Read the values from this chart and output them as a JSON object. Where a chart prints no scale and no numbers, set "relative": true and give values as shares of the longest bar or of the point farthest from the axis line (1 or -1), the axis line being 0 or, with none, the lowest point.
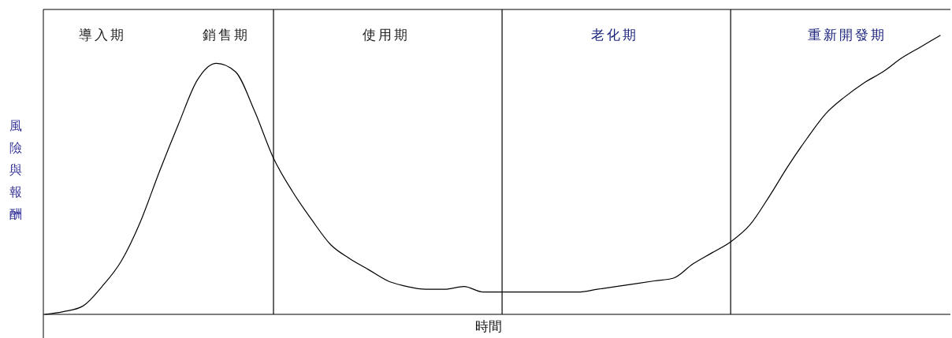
{
  "chart_data": {
    "type": "line",
    "relative": true,
    "xlabel": "時間",
    "ylabel": "風險與報酬",
    "categories": [
      null,
      null,
      null,
      null,
      null,
      null,
      null,
      null,
      null,
      null,
      null,
      null,
      null,
      null,
      null,
      null,
      null,
      null,
      null,
      null,
      null,
      null,
      null,
      null,
      null,
      null,
      null,
      null,
      null,
      null,
      null,
      null,
      null,
      null,
      null,
      null,
      null,
      null,
      null,
      null,
      null,
      null,
      null,
      null,
      null,
      null,
      null,
      null
    ],
    "series": [
      {
        "color": "#000000",
        "values": [
          0,
          0.01,
          0.03,
          0.1,
          0.19,
          0.33,
          0.51,
          0.68,
          0.84,
          0.9,
          0.87,
          0.73,
          0.56,
          0.44,
          0.34,
          0.25,
          0.2,
          0.16,
          0.12,
          0.1,
          0.09,
          0.09,
          0.1,
          0.08,
          0.08,
          0.08,
          0.08,
          0.08,
          0.08,
          0.09,
          0.1,
          0.11,
          0.12,
          0.13,
          0.18,
          0.22,
          0.26,
          0.32,
          0.42,
          0.53,
          0.63,
          0.72,
          0.78,
          0.83,
          0.87,
          0.92,
          0.96,
          1
        ]
      }
    ],
    "annotations": [
      "導入期",
      "銷售期",
      "使用期",
      "老化期",
      "重新開發期"
    ],
    "grid": "x",
    "marker": "none",
    "line_style": "solid"
  }
}
